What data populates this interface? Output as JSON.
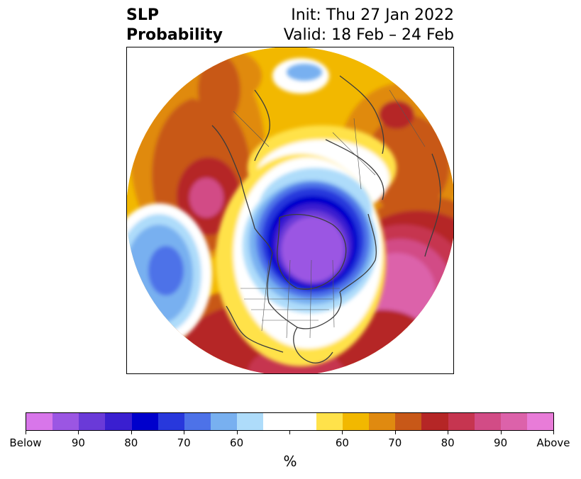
{
  "title": {
    "left_line1": "SLP",
    "left_line2": "Probability",
    "right_line1": "Init: Thu 27 Jan 2022",
    "right_line2": "Valid: 18 Feb – 24 Feb"
  },
  "colorbar": {
    "colors": [
      "#d876ea",
      "#9b56e3",
      "#6a3ad8",
      "#3a1fd0",
      "#0000cc",
      "#2838dc",
      "#4d72e8",
      "#78b0f0",
      "#aedcfa",
      "#ffffff",
      "#ffffff",
      "#ffe24a",
      "#f2b800",
      "#e08a10",
      "#c85818",
      "#b52626",
      "#c63550",
      "#d24c86",
      "#dc62aa",
      "#e87cd8"
    ],
    "tick_labels": [
      "Below",
      "90",
      "80",
      "70",
      "60",
      "",
      "60",
      "70",
      "80",
      "90",
      "Above"
    ],
    "unit": "%"
  },
  "map": {
    "projection": "north polar stereographic",
    "patterns": [
      {
        "category": "below",
        "level": "90+",
        "region": "Hudson Bay / central Canada"
      },
      {
        "category": "below",
        "level": "70-80",
        "region": "eastern Pacific (west of California)"
      },
      {
        "category": "above",
        "level": "80-90",
        "region": "central North Atlantic"
      },
      {
        "category": "above",
        "level": "70-80",
        "region": "Gulf of Alaska / NE Pacific"
      },
      {
        "category": "above",
        "level": "70-80",
        "region": "southern United States"
      },
      {
        "category": "above",
        "level": "60-70",
        "region": "northern Eurasia"
      }
    ]
  }
}
